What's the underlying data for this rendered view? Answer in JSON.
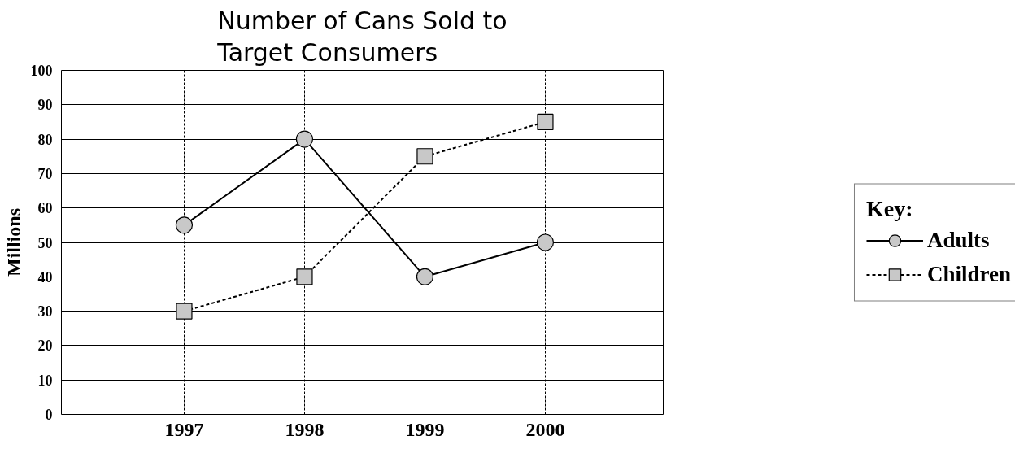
{
  "chart_data": {
    "type": "line",
    "title": "Number of Cans Sold to Target Consumers",
    "ylabel": "Millions",
    "legend_title": "Key:",
    "categories": [
      "1997",
      "1998",
      "1999",
      "2000"
    ],
    "series": [
      {
        "name": "Adults",
        "color": "#000000",
        "values": [
          55,
          80,
          40,
          50
        ],
        "marker": "circle",
        "line_style": "solid"
      },
      {
        "name": "Children",
        "color": "#000000",
        "values": [
          30,
          40,
          75,
          85
        ],
        "marker": "square",
        "line_style": "dashed"
      }
    ],
    "ylim": [
      0,
      100
    ],
    "yticks": [
      0,
      10,
      20,
      30,
      40,
      50,
      60,
      70,
      80,
      90,
      100
    ],
    "grid": true,
    "legend": "right"
  }
}
